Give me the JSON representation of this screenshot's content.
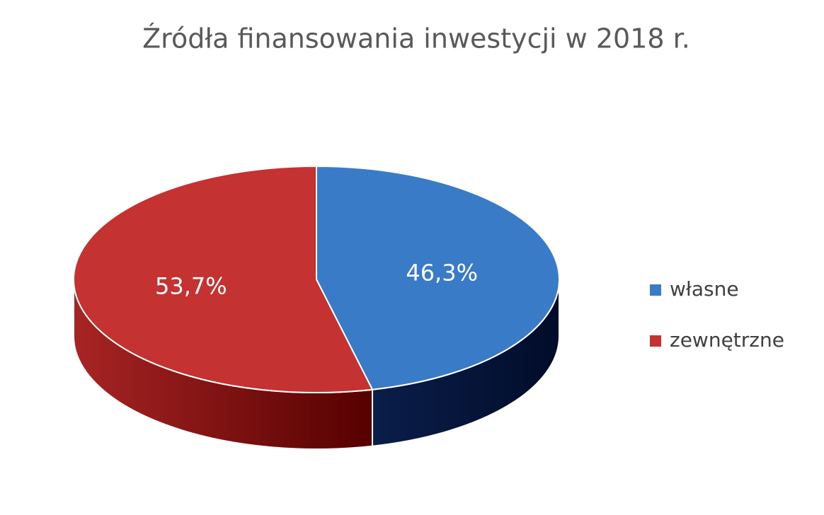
{
  "chart_data": {
    "type": "pie3d",
    "title": "Źródła finansowania inwestycji w 2018 r.",
    "categories": [
      "własne",
      "zewnętrzne"
    ],
    "values": [
      46.3,
      53.7
    ],
    "value_labels": [
      "46,3%",
      "53,7%"
    ],
    "colors": [
      "#3a7bc8",
      "#c43331"
    ],
    "legend": "right"
  }
}
